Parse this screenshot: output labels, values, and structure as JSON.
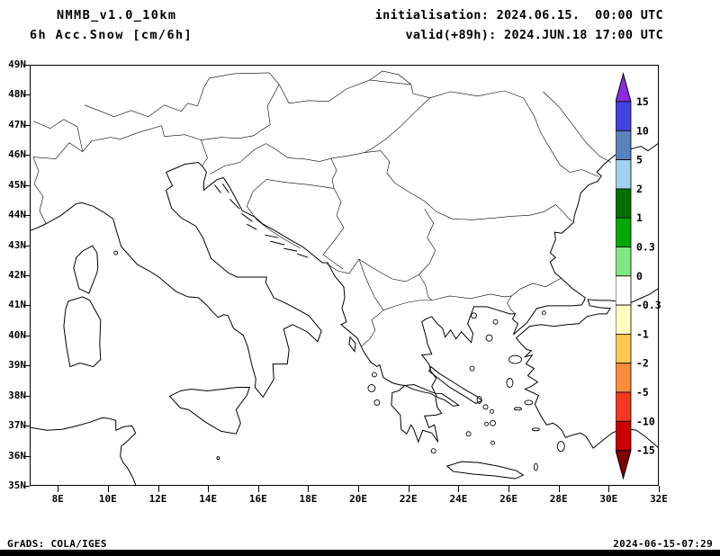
{
  "header": {
    "model": "NMMB_v1.0_10km",
    "product": "6h Acc.Snow [cm/6h]",
    "init": "initialisation: 2024.06.15.  00:00 UTC",
    "valid": "valid(+89h): 2024.JUN.18 17:00 UTC"
  },
  "footer": {
    "left": "GrADS: COLA/IGES",
    "right": "2024-06-15-07:29"
  },
  "axes": {
    "y_labels": [
      "49N",
      "48N",
      "47N",
      "46N",
      "45N",
      "44N",
      "43N",
      "42N",
      "41N",
      "40N",
      "39N",
      "38N",
      "37N",
      "36N",
      "35N"
    ],
    "x_labels": [
      "8E",
      "10E",
      "12E",
      "14E",
      "16E",
      "18E",
      "20E",
      "22E",
      "24E",
      "26E",
      "28E",
      "30E",
      "32E"
    ]
  },
  "colorbar": {
    "labels": [
      "15",
      "10",
      "5",
      "2",
      "1",
      "0.3",
      "0",
      "-0.3",
      "-1",
      "-2",
      "-5",
      "-10",
      "-15"
    ],
    "segments": [
      "#4343e0",
      "#5a82be",
      "#a0d2f0",
      "#007000",
      "#00a800",
      "#80e880",
      "#ffffff",
      "#ffffc0",
      "#ffc850",
      "#fa8c3c",
      "#f23820",
      "#cc0000"
    ],
    "arrow_top": "#8a2be2",
    "arrow_bottom": "#7f0000"
  },
  "chart_data": {
    "type": "heatmap",
    "title": "6h Acc.Snow [cm/6h]",
    "model": "NMMB_v1.0_10km",
    "initialisation": "2024.06.15. 00:00 UTC",
    "valid": "2024.JUN.18 17:00 UTC",
    "lead_time_hours": 89,
    "projection": "latlon",
    "region": "Central / Southeast Europe (Italy, Balkans, Greece, western Turkey, Black Sea)",
    "lon_range": [
      6.9,
      32
    ],
    "lat_range": [
      35,
      49
    ],
    "x_ticks_deg_east": [
      8,
      10,
      12,
      14,
      16,
      18,
      20,
      22,
      24,
      26,
      28,
      30,
      32
    ],
    "y_ticks_deg_north": [
      49,
      48,
      47,
      46,
      45,
      44,
      43,
      42,
      41,
      40,
      39,
      38,
      37,
      36,
      35
    ],
    "colorbar_levels_cm": [
      15,
      10,
      5,
      2,
      1,
      0.3,
      0,
      -0.3,
      -1,
      -2,
      -5,
      -10,
      -15
    ],
    "legend_position": "right",
    "grid": false,
    "field_summary": "No snow accumulation shaded anywhere in the domain; only coastlines and country borders are drawn (field is zero everywhere)."
  }
}
